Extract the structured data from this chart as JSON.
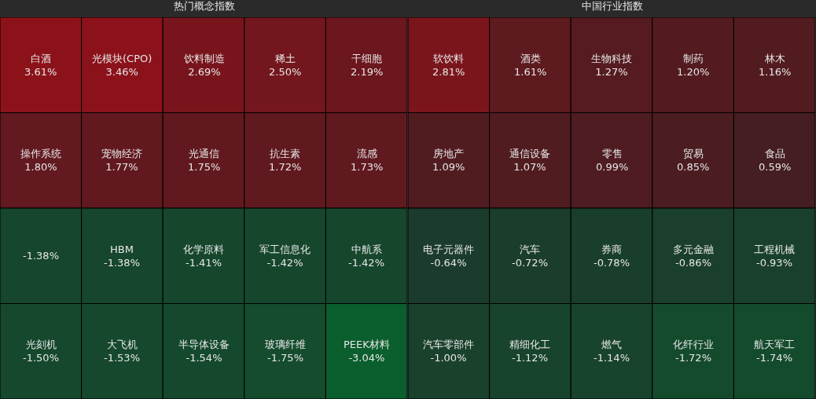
{
  "chart_data": [
    {
      "type": "other",
      "title": "热门概念指数",
      "categories": [
        "白酒",
        "光模块(CPO)",
        "饮料制造",
        "稀土",
        "干细胞",
        "操作系统",
        "宠物经济",
        "光通信",
        "抗生素",
        "流感",
        null,
        "HBM",
        "化学原料",
        "军工信息化",
        "中航系",
        "光刻机",
        "大飞机",
        "半导体设备",
        "玻璃纤维",
        "PEEK材料"
      ],
      "values": [
        3.61,
        3.46,
        2.69,
        2.5,
        2.19,
        1.8,
        1.77,
        1.75,
        1.72,
        1.73,
        -1.38,
        -1.38,
        -1.41,
        -1.42,
        -1.42,
        -1.5,
        -1.53,
        -1.54,
        -1.75,
        -3.04
      ],
      "value_labels": [
        "3.61%",
        "3.46%",
        "2.69%",
        "2.50%",
        "2.19%",
        "1.80%",
        "1.77%",
        "1.75%",
        "1.72%",
        "1.73%",
        "-1.38%",
        "-1.38%",
        "-1.41%",
        "-1.42%",
        "-1.42%",
        "-1.50%",
        "-1.53%",
        "-1.54%",
        "-1.75%",
        "-3.04%"
      ]
    },
    {
      "type": "other",
      "title": "中国行业指数",
      "categories": [
        "软饮料",
        "酒类",
        "生物科技",
        "制药",
        "林木",
        "房地产",
        "通信设备",
        "零售",
        "贸易",
        "食品",
        "电子元器件",
        "汽车",
        "券商",
        "多元金融",
        "工程机械",
        "汽车零部件",
        "精细化工",
        "燃气",
        "化纤行业",
        "航天军工"
      ],
      "values": [
        2.81,
        1.61,
        1.27,
        1.2,
        1.16,
        1.09,
        1.07,
        0.99,
        0.85,
        0.59,
        -0.64,
        -0.72,
        -0.78,
        -0.86,
        -0.93,
        -1.0,
        -1.12,
        -1.14,
        -1.72,
        -1.74
      ],
      "value_labels": [
        "2.81%",
        "1.61%",
        "1.27%",
        "1.20%",
        "1.16%",
        "1.09%",
        "1.07%",
        "0.99%",
        "0.85%",
        "0.59%",
        "-0.64%",
        "-0.72%",
        "-0.78%",
        "-0.86%",
        "-0.93%",
        "-1.00%",
        "-1.12%",
        "-1.14%",
        "-1.72%",
        "-1.74%"
      ]
    }
  ]
}
